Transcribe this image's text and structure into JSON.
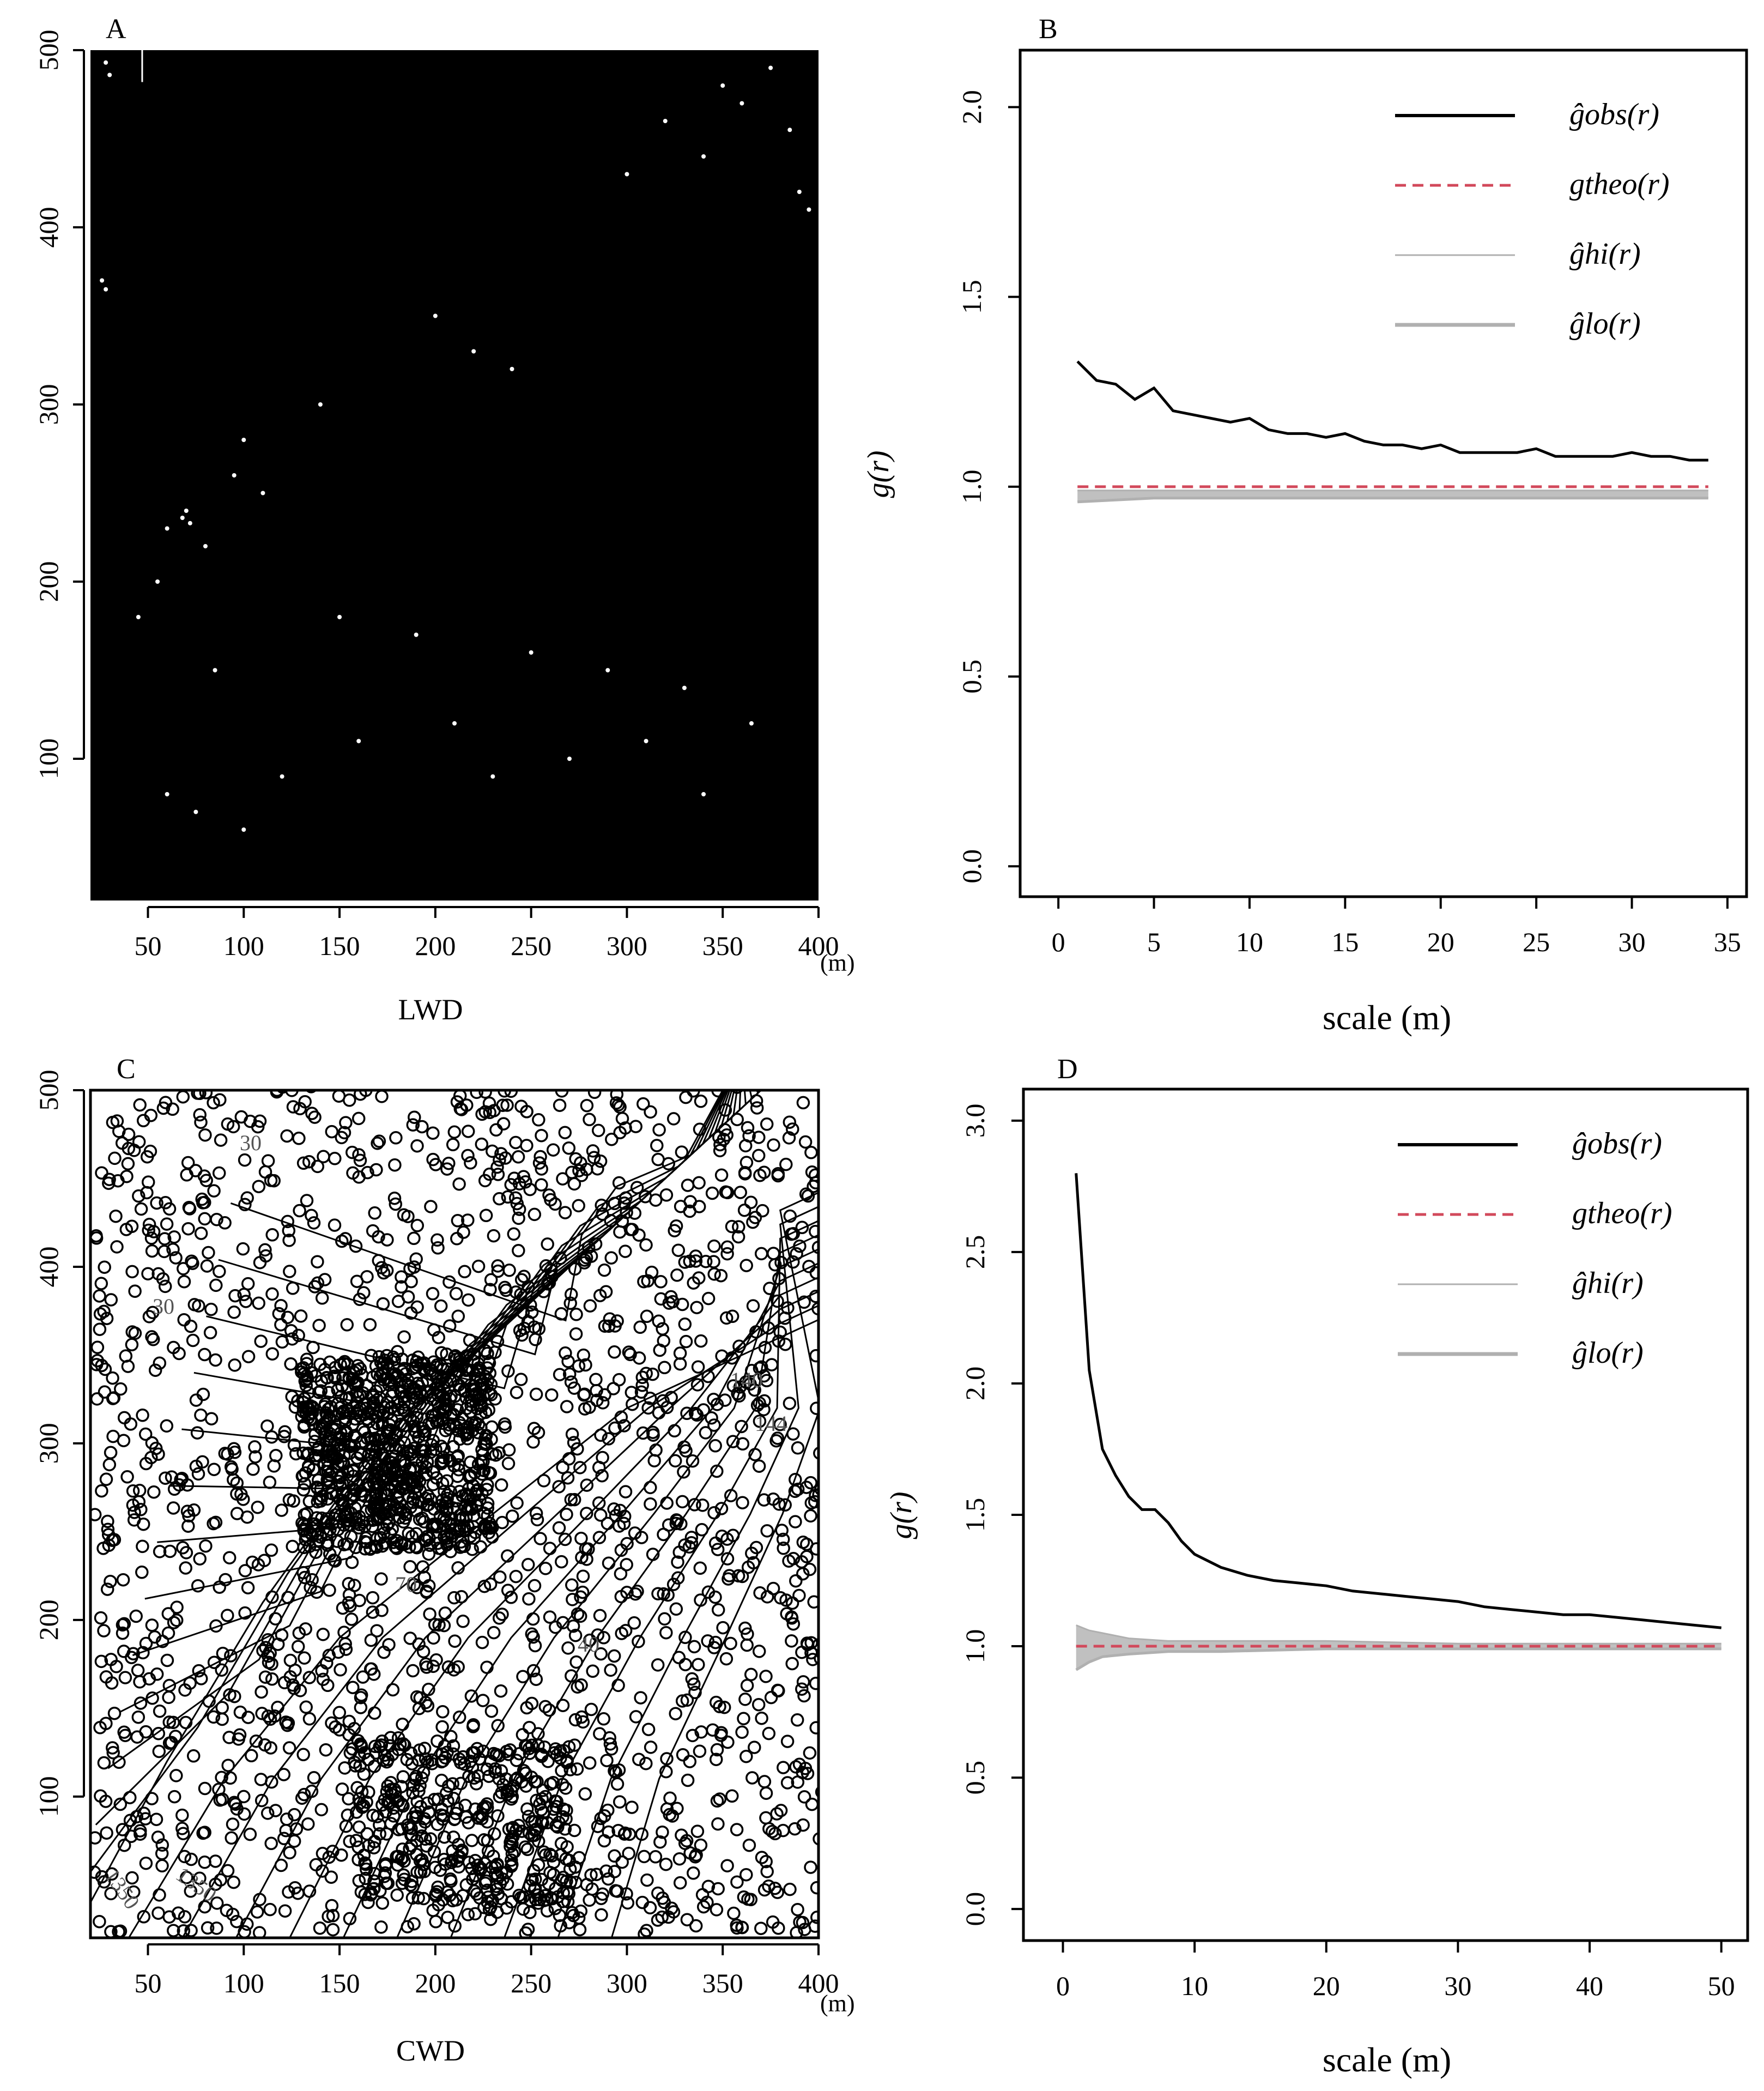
{
  "colors": {
    "ink": "#000000",
    "theo": "#d2495b",
    "env_fill": "#c0c0c0",
    "env_line": "#b0b0b0"
  },
  "units": {
    "m": "(m)"
  },
  "panels": {
    "A": {
      "letter": "A",
      "xlabel": "LWD",
      "xticks": [
        "50",
        "100",
        "150",
        "200",
        "250",
        "300",
        "350",
        "400"
      ],
      "yticks": [
        "100",
        "200",
        "300",
        "400",
        "500"
      ]
    },
    "B": {
      "letter": "B",
      "xlabel": "scale (m)",
      "ylabel": "g(r)"
    },
    "C": {
      "letter": "C",
      "xlabel": "CWD",
      "xticks": [
        "50",
        "100",
        "150",
        "200",
        "250",
        "300",
        "350",
        "400"
      ],
      "yticks": [
        "100",
        "200",
        "300",
        "400",
        "500"
      ],
      "contour_labels": [
        "30",
        "30",
        "1350",
        "1350",
        "140",
        "144",
        "70",
        "40"
      ]
    },
    "D": {
      "letter": "D",
      "xlabel": "scale (m)",
      "ylabel": "g(r)"
    }
  },
  "legend": [
    {
      "key": "obs",
      "text": "ĝobs(r)"
    },
    {
      "key": "theo",
      "text": "gtheo(r)"
    },
    {
      "key": "hi",
      "text": "ĝhi(r)"
    },
    {
      "key": "lo",
      "text": "ĝlo(r)"
    }
  ],
  "chart_data": [
    {
      "panel": "A",
      "type": "scatter",
      "title": "",
      "xlabel": "LWD",
      "ylabel": "",
      "xlim": [
        20,
        400
      ],
      "ylim": [
        20,
        500
      ],
      "x_unit": "(m)",
      "note_visible": "dense black point map",
      "points": [
        [
          28,
          493
        ],
        [
          30,
          486
        ],
        [
          26,
          370
        ],
        [
          28,
          365
        ],
        [
          68,
          236
        ],
        [
          72,
          233
        ],
        [
          70,
          240
        ],
        [
          60,
          230
        ],
        [
          80,
          220
        ],
        [
          140,
          300
        ],
        [
          150,
          180
        ],
        [
          190,
          170
        ],
        [
          250,
          160
        ],
        [
          290,
          150
        ],
        [
          330,
          140
        ],
        [
          60,
          80
        ],
        [
          75,
          70
        ],
        [
          100,
          60
        ],
        [
          120,
          90
        ],
        [
          160,
          110
        ],
        [
          210,
          120
        ],
        [
          350,
          480
        ],
        [
          360,
          470
        ],
        [
          375,
          490
        ],
        [
          385,
          455
        ],
        [
          390,
          420
        ],
        [
          395,
          410
        ],
        [
          300,
          430
        ],
        [
          320,
          460
        ],
        [
          340,
          440
        ],
        [
          200,
          350
        ],
        [
          220,
          330
        ],
        [
          240,
          320
        ],
        [
          100,
          280
        ],
        [
          95,
          260
        ],
        [
          110,
          250
        ],
        [
          55,
          200
        ],
        [
          45,
          180
        ],
        [
          85,
          150
        ],
        [
          230,
          90
        ],
        [
          270,
          100
        ],
        [
          310,
          110
        ],
        [
          340,
          80
        ],
        [
          365,
          120
        ]
      ]
    },
    {
      "panel": "B",
      "type": "line",
      "title": "",
      "xlabel": "scale (m)",
      "ylabel": "g(r)",
      "xlim": [
        -2,
        36
      ],
      "ylim": [
        -0.08,
        2.15
      ],
      "xticks": [
        0,
        5,
        10,
        15,
        20,
        25,
        30,
        35
      ],
      "yticks": [
        0.0,
        0.5,
        1.0,
        1.5,
        2.0
      ],
      "series": [
        {
          "name": "ĝobs(r)",
          "x": [
            1,
            2,
            3,
            4,
            5,
            6,
            7,
            8,
            9,
            10,
            11,
            12,
            13,
            14,
            15,
            16,
            17,
            18,
            19,
            20,
            21,
            22,
            23,
            24,
            25,
            26,
            27,
            28,
            29,
            30,
            31,
            32,
            33,
            34
          ],
          "y": [
            1.33,
            1.28,
            1.27,
            1.23,
            1.26,
            1.2,
            1.19,
            1.18,
            1.17,
            1.18,
            1.15,
            1.14,
            1.14,
            1.13,
            1.14,
            1.12,
            1.11,
            1.11,
            1.1,
            1.11,
            1.09,
            1.09,
            1.09,
            1.09,
            1.1,
            1.08,
            1.08,
            1.08,
            1.08,
            1.09,
            1.08,
            1.08,
            1.07,
            1.07
          ]
        },
        {
          "name": "gtheo(r)",
          "x": [
            1,
            34
          ],
          "y": [
            1.0,
            1.0
          ]
        },
        {
          "name": "ĝhi(r)",
          "x": [
            1,
            5,
            10,
            15,
            20,
            25,
            30,
            34
          ],
          "y": [
            0.99,
            0.99,
            0.99,
            0.99,
            0.99,
            0.99,
            0.99,
            0.99
          ]
        },
        {
          "name": "ĝlo(r)",
          "x": [
            1,
            5,
            10,
            15,
            20,
            25,
            30,
            34
          ],
          "y": [
            0.96,
            0.97,
            0.97,
            0.97,
            0.97,
            0.97,
            0.97,
            0.97
          ]
        }
      ]
    },
    {
      "panel": "C",
      "type": "scatter",
      "title": "",
      "xlabel": "CWD",
      "ylabel": "",
      "xlim": [
        20,
        400
      ],
      "ylim": [
        20,
        500
      ],
      "x_unit": "(m)",
      "note_visible": "dense circles over contour lines"
    },
    {
      "panel": "D",
      "type": "line",
      "title": "",
      "xlabel": "scale (m)",
      "ylabel": "g(r)",
      "xlim": [
        -3,
        52
      ],
      "ylim": [
        -0.12,
        3.12
      ],
      "xticks": [
        0,
        10,
        20,
        30,
        40,
        50
      ],
      "yticks": [
        0.0,
        0.5,
        1.0,
        1.5,
        2.0,
        2.5,
        3.0
      ],
      "series": [
        {
          "name": "ĝobs(r)",
          "x": [
            1,
            2,
            3,
            4,
            5,
            6,
            7,
            8,
            9,
            10,
            12,
            14,
            16,
            18,
            20,
            22,
            24,
            26,
            28,
            30,
            32,
            34,
            36,
            38,
            40,
            42,
            44,
            46,
            48,
            50
          ],
          "y": [
            2.8,
            2.05,
            1.75,
            1.65,
            1.57,
            1.52,
            1.52,
            1.47,
            1.4,
            1.35,
            1.3,
            1.27,
            1.25,
            1.24,
            1.23,
            1.21,
            1.2,
            1.19,
            1.18,
            1.17,
            1.15,
            1.14,
            1.13,
            1.12,
            1.12,
            1.11,
            1.1,
            1.09,
            1.08,
            1.07
          ]
        },
        {
          "name": "gtheo(r)",
          "x": [
            1,
            50
          ],
          "y": [
            1.0,
            1.0
          ]
        },
        {
          "name": "ĝhi(r)",
          "x": [
            1,
            2,
            3,
            5,
            8,
            12,
            20,
            30,
            40,
            50
          ],
          "y": [
            1.08,
            1.06,
            1.05,
            1.03,
            1.02,
            1.02,
            1.02,
            1.01,
            1.01,
            1.01
          ]
        },
        {
          "name": "ĝlo(r)",
          "x": [
            1,
            2,
            3,
            5,
            8,
            12,
            20,
            30,
            40,
            50
          ],
          "y": [
            0.91,
            0.94,
            0.96,
            0.97,
            0.98,
            0.98,
            0.99,
            0.99,
            0.99,
            0.99
          ]
        }
      ]
    }
  ]
}
